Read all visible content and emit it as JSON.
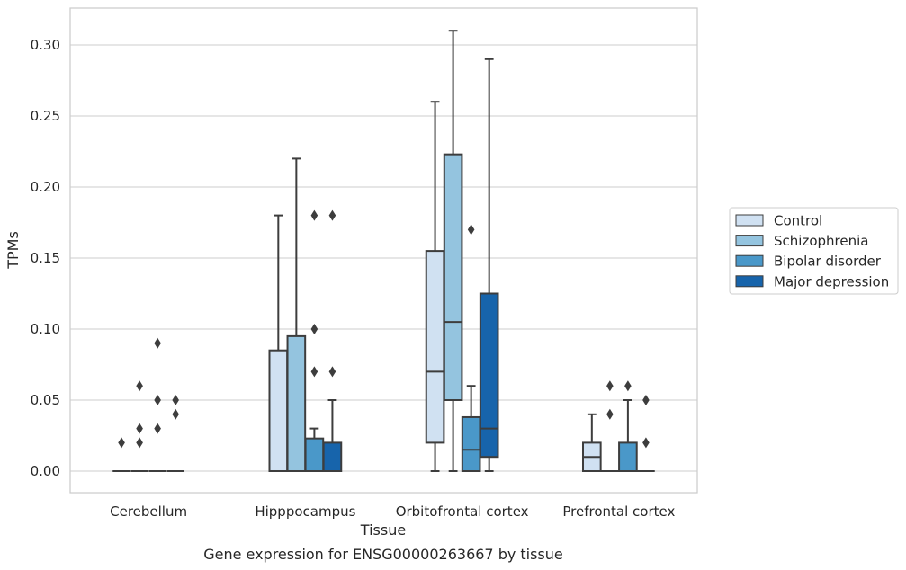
{
  "chart_data": {
    "type": "box",
    "xlabel": "Tissue",
    "ylabel": "TPMs",
    "caption": "Gene expression for ENSG00000263667 by tissue",
    "ylim": [
      -0.015,
      0.325
    ],
    "yticks": [
      "0.00",
      "0.05",
      "0.10",
      "0.15",
      "0.20",
      "0.25",
      "0.30"
    ],
    "ytick_values": [
      0,
      0.05,
      0.1,
      0.15,
      0.2,
      0.25,
      0.3
    ],
    "grid": true,
    "legend_position": "right",
    "categories": [
      "Cerebellum",
      "Hipppocampus",
      "Orbitofrontal cortex",
      "Prefrontal cortex"
    ],
    "series": [
      {
        "name": "Control",
        "color": "#d0e1f2",
        "boxes": [
          {
            "q1": 0,
            "median": 0,
            "q3": 0,
            "whislo": 0,
            "whishi": 0,
            "fliers": [
              0.02
            ]
          },
          {
            "q1": 0,
            "median": 0,
            "q3": 0.085,
            "whislo": 0,
            "whishi": 0.18,
            "fliers": []
          },
          {
            "q1": 0.02,
            "median": 0.07,
            "q3": 0.155,
            "whislo": 0,
            "whishi": 0.26,
            "fliers": []
          },
          {
            "q1": 0,
            "median": 0.01,
            "q3": 0.02,
            "whislo": 0,
            "whishi": 0.04,
            "fliers": []
          }
        ]
      },
      {
        "name": "Schizophrenia",
        "color": "#94c4df",
        "boxes": [
          {
            "q1": 0,
            "median": 0,
            "q3": 0,
            "whislo": 0,
            "whishi": 0,
            "fliers": [
              0.02,
              0.03,
              0.06
            ]
          },
          {
            "q1": 0,
            "median": 0,
            "q3": 0.095,
            "whislo": 0,
            "whishi": 0.22,
            "fliers": []
          },
          {
            "q1": 0.05,
            "median": 0.105,
            "q3": 0.223,
            "whislo": 0,
            "whishi": 0.31,
            "fliers": []
          },
          {
            "q1": 0,
            "median": 0,
            "q3": 0,
            "whislo": 0,
            "whishi": 0,
            "fliers": [
              0.04,
              0.06
            ]
          }
        ]
      },
      {
        "name": "Bipolar disorder",
        "color": "#4a98c9",
        "boxes": [
          {
            "q1": 0,
            "median": 0,
            "q3": 0,
            "whislo": 0,
            "whishi": 0,
            "fliers": [
              0.03,
              0.05,
              0.09
            ]
          },
          {
            "q1": 0,
            "median": 0,
            "q3": 0.023,
            "whislo": 0,
            "whishi": 0.03,
            "fliers": [
              0.07,
              0.1,
              0.18
            ]
          },
          {
            "q1": 0,
            "median": 0.015,
            "q3": 0.038,
            "whislo": 0,
            "whishi": 0.06,
            "fliers": [
              0.17
            ]
          },
          {
            "q1": 0,
            "median": 0,
            "q3": 0.02,
            "whislo": 0,
            "whishi": 0.05,
            "fliers": [
              0.06
            ]
          }
        ]
      },
      {
        "name": "Major depression",
        "color": "#1764ab",
        "boxes": [
          {
            "q1": 0,
            "median": 0,
            "q3": 0,
            "whislo": 0,
            "whishi": 0,
            "fliers": [
              0.04,
              0.05
            ]
          },
          {
            "q1": 0,
            "median": 0,
            "q3": 0.02,
            "whislo": 0,
            "whishi": 0.05,
            "fliers": [
              0.07,
              0.18
            ]
          },
          {
            "q1": 0.01,
            "median": 0.03,
            "q3": 0.125,
            "whislo": 0,
            "whishi": 0.29,
            "fliers": []
          },
          {
            "q1": 0,
            "median": 0,
            "q3": 0,
            "whislo": 0,
            "whishi": 0,
            "fliers": [
              0.02,
              0.05
            ]
          }
        ]
      }
    ]
  }
}
